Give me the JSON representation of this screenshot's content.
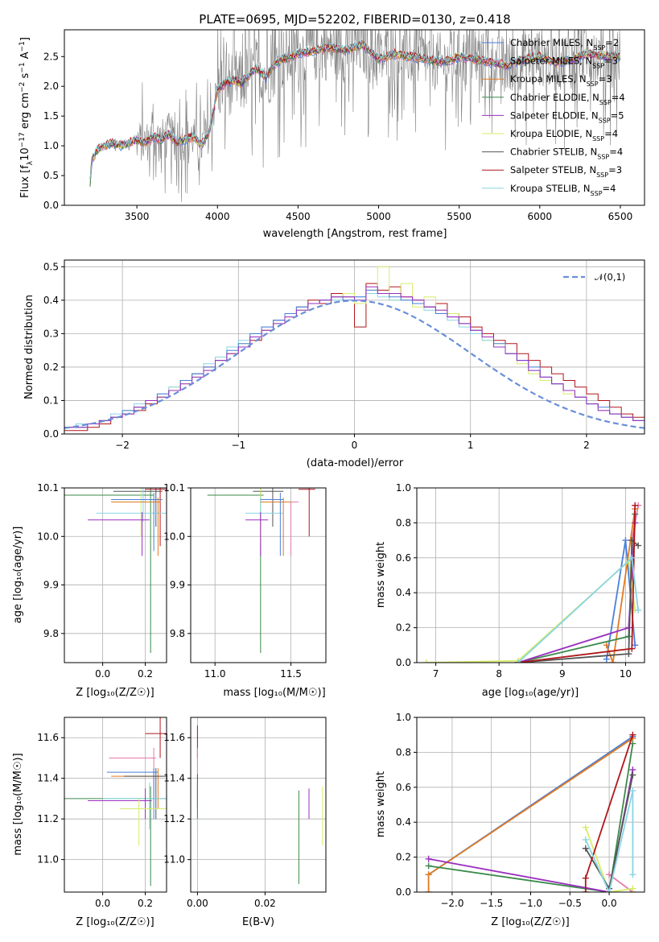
{
  "figure": {
    "title": "PLATE=0695, MJD=52202, FIBERID=0130, z=0.418"
  },
  "colors": {
    "Chabrier MILES": "#4a7fd8",
    "Salpeter MILES": "#e57aaa",
    "Kroupa MILES": "#e07a22",
    "Chabrier ELODIE": "#3a8a4a",
    "Salpeter ELODIE": "#9a2fbf",
    "Kroupa ELODIE": "#d7ec6a",
    "Chabrier STELIB": "#555555",
    "Salpeter STELIB": "#b0161b",
    "Kroupa STELIB": "#8ad4e3",
    "data": "#808080",
    "gauss": "#6a8fd8"
  },
  "chart_data": [
    {
      "id": "spectrum",
      "type": "line",
      "title": "PLATE=0695, MJD=52202, FIBERID=0130, z=0.418",
      "xlabel": "wavelength [Angstrom, rest frame]",
      "ylabel": "Flux [f_λ 10^-17 erg cm^-2 s^-1 A^-1]",
      "xlim": [
        3050,
        6650
      ],
      "ylim": [
        0,
        2.95
      ],
      "xticks": [
        3500,
        4000,
        4500,
        5000,
        5500,
        6000,
        6500
      ],
      "yticks": [
        0.0,
        0.5,
        1.0,
        1.5,
        2.0,
        2.5
      ],
      "continuum": {
        "x": [
          3200,
          3220,
          3260,
          3300,
          3350,
          3400,
          3450,
          3500,
          3550,
          3600,
          3650,
          3700,
          3750,
          3800,
          3850,
          3900,
          3950,
          4000,
          4050,
          4100,
          4150,
          4200,
          4250,
          4300,
          4350,
          4400,
          4450,
          4500,
          4600,
          4700,
          4800,
          4900,
          5000,
          5100,
          5200,
          5300,
          5400,
          5500,
          5600,
          5700,
          5800,
          5900,
          6000,
          6100,
          6200,
          6300,
          6400,
          6500
        ],
        "y": [
          0.0,
          0.75,
          0.95,
          1.0,
          1.05,
          1.0,
          1.05,
          1.1,
          1.05,
          1.15,
          1.1,
          1.2,
          1.05,
          1.1,
          1.15,
          1.0,
          1.25,
          1.95,
          2.05,
          2.1,
          2.05,
          2.2,
          2.3,
          2.15,
          2.35,
          2.45,
          2.5,
          2.55,
          2.6,
          2.65,
          2.6,
          2.7,
          2.45,
          2.55,
          2.5,
          2.45,
          2.4,
          2.5,
          2.45,
          2.4,
          2.35,
          2.45,
          2.5,
          2.4,
          2.45,
          2.55,
          2.5,
          2.5
        ]
      },
      "legend": [
        {
          "name": "Chabrier MILES",
          "nssp": "2"
        },
        {
          "name": "Salpeter MILES",
          "nssp": "3"
        },
        {
          "name": "Kroupa MILES",
          "nssp": "3"
        },
        {
          "name": "Chabrier ELODIE",
          "nssp": "4"
        },
        {
          "name": "Salpeter ELODIE",
          "nssp": "5"
        },
        {
          "name": "Kroupa ELODIE",
          "nssp": "4"
        },
        {
          "name": "Chabrier STELIB",
          "nssp": "4"
        },
        {
          "name": "Salpeter STELIB",
          "nssp": "3"
        },
        {
          "name": "Kroupa STELIB",
          "nssp": "4"
        }
      ]
    },
    {
      "id": "residuals",
      "type": "histogram",
      "xlabel": "(data-model)/error",
      "ylabel": "Normed distribution",
      "xlim": [
        -2.5,
        2.5
      ],
      "ylim": [
        0,
        0.52
      ],
      "xticks": [
        -2,
        -1,
        0,
        1,
        2
      ],
      "yticks": [
        0.0,
        0.1,
        0.2,
        0.3,
        0.4,
        0.5
      ],
      "legend": "𝒩(0,1)",
      "bin_width": 0.1,
      "bin_start": -2.5,
      "series": [
        {
          "model": "Salpeter STELIB",
          "values": [
            0.01,
            0.01,
            0.02,
            0.03,
            0.05,
            0.06,
            0.07,
            0.09,
            0.11,
            0.13,
            0.16,
            0.18,
            0.2,
            0.22,
            0.24,
            0.26,
            0.28,
            0.31,
            0.34,
            0.36,
            0.38,
            0.4,
            0.39,
            0.42,
            0.41,
            0.32,
            0.45,
            0.43,
            0.44,
            0.41,
            0.4,
            0.38,
            0.39,
            0.36,
            0.35,
            0.32,
            0.3,
            0.28,
            0.27,
            0.24,
            0.22,
            0.2,
            0.18,
            0.16,
            0.14,
            0.12,
            0.1,
            0.08,
            0.06,
            0.05
          ]
        },
        {
          "model": "Kroupa ELODIE",
          "values": [
            0.02,
            0.02,
            0.03,
            0.04,
            0.05,
            0.07,
            0.08,
            0.1,
            0.11,
            0.14,
            0.15,
            0.17,
            0.19,
            0.22,
            0.24,
            0.27,
            0.29,
            0.31,
            0.33,
            0.35,
            0.37,
            0.39,
            0.4,
            0.41,
            0.42,
            0.39,
            0.43,
            0.5,
            0.4,
            0.45,
            0.38,
            0.41,
            0.37,
            0.36,
            0.33,
            0.31,
            0.28,
            0.27,
            0.24,
            0.21,
            0.18,
            0.16,
            0.15,
            0.12,
            0.11,
            0.09,
            0.07,
            0.06,
            0.05,
            0.04
          ]
        },
        {
          "model": "Kroupa STELIB",
          "values": [
            0.02,
            0.03,
            0.03,
            0.04,
            0.06,
            0.07,
            0.09,
            0.1,
            0.12,
            0.14,
            0.16,
            0.18,
            0.21,
            0.23,
            0.26,
            0.28,
            0.3,
            0.32,
            0.34,
            0.36,
            0.38,
            0.39,
            0.4,
            0.4,
            0.41,
            0.41,
            0.42,
            0.41,
            0.4,
            0.4,
            0.39,
            0.37,
            0.36,
            0.34,
            0.32,
            0.3,
            0.28,
            0.26,
            0.24,
            0.22,
            0.19,
            0.17,
            0.15,
            0.13,
            0.11,
            0.09,
            0.07,
            0.06,
            0.05,
            0.04
          ]
        },
        {
          "model": "Chabrier MILES",
          "values": [
            0.02,
            0.02,
            0.03,
            0.04,
            0.05,
            0.07,
            0.08,
            0.1,
            0.12,
            0.13,
            0.16,
            0.18,
            0.2,
            0.22,
            0.25,
            0.27,
            0.3,
            0.32,
            0.34,
            0.36,
            0.38,
            0.39,
            0.4,
            0.41,
            0.4,
            0.41,
            0.43,
            0.42,
            0.41,
            0.4,
            0.39,
            0.38,
            0.36,
            0.35,
            0.33,
            0.31,
            0.29,
            0.27,
            0.24,
            0.22,
            0.2,
            0.17,
            0.15,
            0.13,
            0.11,
            0.09,
            0.08,
            0.06,
            0.05,
            0.04
          ]
        },
        {
          "model": "Salpeter ELODIE",
          "values": [
            0.02,
            0.02,
            0.03,
            0.04,
            0.05,
            0.06,
            0.08,
            0.1,
            0.11,
            0.13,
            0.15,
            0.17,
            0.19,
            0.22,
            0.24,
            0.26,
            0.29,
            0.31,
            0.33,
            0.35,
            0.37,
            0.39,
            0.4,
            0.41,
            0.41,
            0.4,
            0.44,
            0.42,
            0.42,
            0.41,
            0.4,
            0.38,
            0.37,
            0.35,
            0.33,
            0.31,
            0.29,
            0.26,
            0.24,
            0.22,
            0.19,
            0.17,
            0.15,
            0.13,
            0.11,
            0.09,
            0.07,
            0.06,
            0.05,
            0.04
          ]
        }
      ]
    },
    {
      "id": "age-vs-Z",
      "type": "errorbar",
      "xlabel": "Z [log10(Z/Z☉)]",
      "ylabel": "age  [log10(age/yr)]",
      "xlim": [
        -0.18,
        0.3
      ],
      "ylim": [
        9.74,
        10.1
      ],
      "xticks": [
        0.0,
        0.2
      ],
      "yticks": [
        9.8,
        9.9,
        10.0,
        10.1
      ]
    },
    {
      "id": "age-vs-mass",
      "type": "errorbar",
      "xlabel": "mass [log10(M/M☉)]",
      "ylabel": "",
      "xlim": [
        10.84,
        11.73
      ],
      "ylim": [
        9.74,
        10.1
      ],
      "xticks": [
        11.0,
        11.5
      ],
      "yticks": [
        9.8,
        9.9,
        10.0,
        10.1
      ]
    },
    {
      "id": "weight-vs-age",
      "type": "line",
      "xlabel": "age  [log10(age/yr)]",
      "ylabel": "mass weight",
      "xlim": [
        6.7,
        10.3
      ],
      "ylim": [
        0,
        1.0
      ],
      "xticks": [
        7,
        8,
        9,
        10
      ],
      "yticks": [
        0.0,
        0.2,
        0.4,
        0.6,
        0.8,
        1.0
      ]
    },
    {
      "id": "mass-vs-Z",
      "type": "errorbar",
      "xlabel": "Z [log10(Z/Z☉)]",
      "ylabel": "mass [log10(M/M☉)]",
      "xlim": [
        -0.18,
        0.3
      ],
      "ylim": [
        10.84,
        11.7
      ],
      "xticks": [
        0.0,
        0.2
      ],
      "yticks": [
        11.0,
        11.2,
        11.4,
        11.6
      ]
    },
    {
      "id": "mass-vs-ebv",
      "type": "errorbar",
      "xlabel": "E(B-V)",
      "ylabel": "",
      "xlim": [
        -0.002,
        0.038
      ],
      "ylim": [
        10.84,
        11.7
      ],
      "xticks": [
        0.0,
        0.02
      ],
      "yticks": [
        11.0,
        11.2,
        11.4,
        11.6
      ]
    },
    {
      "id": "weight-vs-Z",
      "type": "line",
      "xlabel": "Z [log10(Z/Z☉)]",
      "ylabel": "mass weight",
      "xlim": [
        -2.45,
        0.45
      ],
      "ylim": [
        0,
        1.0
      ],
      "xticks": [
        -2.0,
        -1.5,
        -1.0,
        -0.5,
        0.0
      ],
      "yticks": [
        0.0,
        0.2,
        0.4,
        0.6,
        0.8,
        1.0
      ]
    }
  ]
}
